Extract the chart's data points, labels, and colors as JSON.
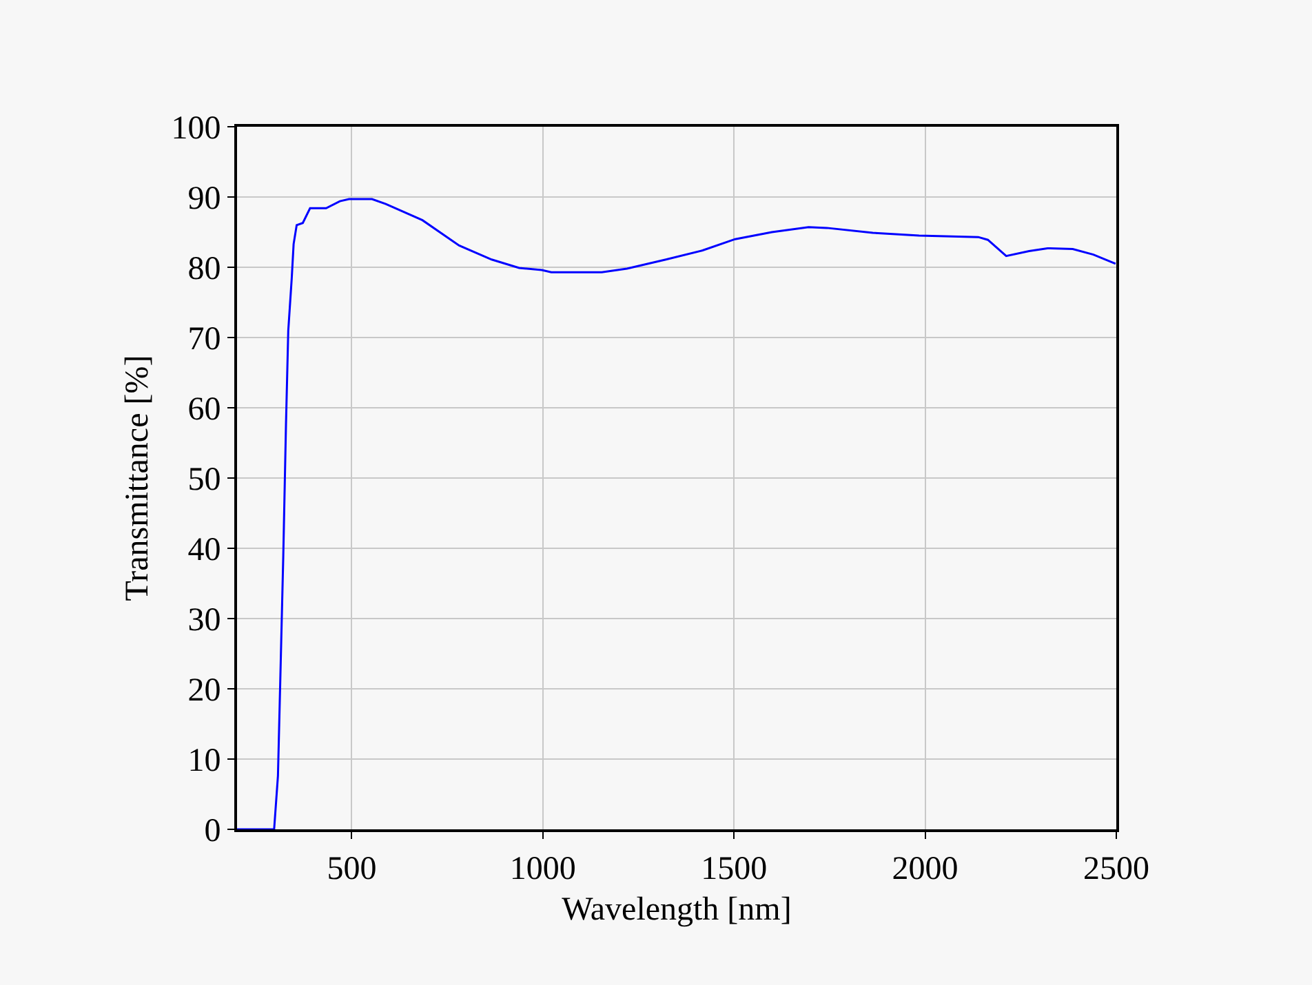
{
  "chart_data": {
    "type": "line",
    "xlabel": "Wavelength [nm]",
    "ylabel": "Transmittance [%]",
    "xlim": [
      200,
      2500
    ],
    "ylim": [
      0,
      100
    ],
    "xticks": [
      500,
      1000,
      1500,
      2000,
      2500
    ],
    "yticks": [
      0,
      10,
      20,
      30,
      40,
      50,
      60,
      70,
      80,
      90,
      100
    ],
    "grid": true,
    "series": [
      {
        "color": "#0000ff",
        "x": [
          200,
          297,
          307,
          313,
          321,
          328,
          334,
          343,
          348,
          356,
          372,
          391,
          433,
          469,
          493,
          553,
          589,
          685,
          781,
          866,
          938,
          997,
          1022,
          1154,
          1220,
          1322,
          1418,
          1503,
          1599,
          1695,
          1743,
          1863,
          1984,
          2139,
          2164,
          2212,
          2272,
          2320,
          2386,
          2440,
          2498
        ],
        "values": [
          0,
          0,
          7.6,
          21,
          39,
          57.6,
          71,
          78.4,
          83.3,
          86,
          86.3,
          88.4,
          88.4,
          89.4,
          89.7,
          89.7,
          89,
          86.7,
          83.1,
          81.1,
          79.9,
          79.6,
          79.3,
          79.3,
          79.8,
          81.1,
          82.4,
          84,
          85,
          85.7,
          85.6,
          84.9,
          84.5,
          84.3,
          83.9,
          81.6,
          82.3,
          82.7,
          82.6,
          81.8,
          80.5
        ]
      }
    ]
  }
}
